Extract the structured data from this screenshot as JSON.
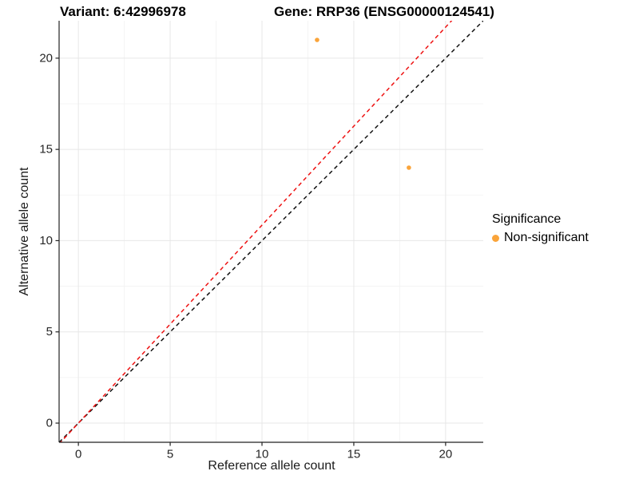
{
  "titles": {
    "variant": "Variant: 6:42996978",
    "gene": "Gene: RRP36 (ENSG00000124541)"
  },
  "legend": {
    "title": "Significance",
    "items": [
      {
        "label": "Non-significant",
        "color": "#FAA43A"
      }
    ]
  },
  "colors": {
    "background": "#FFFFFF",
    "point": "#FAA43A",
    "identity_line": "#111111",
    "ratio_line": "#EE1111",
    "grid_major": "#E7E7E7",
    "grid_minor": "#F2F2F2",
    "axis_line": "#222222",
    "tick_mark": "#222222",
    "tick_text": "#262626"
  },
  "chart_data": {
    "type": "scatter",
    "title": "Variant: 6:42996978 | Gene: RRP36 (ENSG00000124541)",
    "xlabel": "Reference allele count",
    "ylabel": "Alternative allele count",
    "points": [
      {
        "x": 13,
        "y": 21,
        "series": "Non-significant"
      },
      {
        "x": 18,
        "y": 14,
        "series": "Non-significant"
      }
    ],
    "point_color": "#FAA43A",
    "point_radius_px": 2.8,
    "xlim": [
      -1.05,
      22.05
    ],
    "ylim": [
      -1.05,
      22.05
    ],
    "xticks": [
      0,
      5,
      10,
      15,
      20
    ],
    "yticks": [
      0,
      5,
      10,
      15,
      20
    ],
    "xticks_minor": [
      2.5,
      7.5,
      12.5,
      17.5
    ],
    "yticks_minor": [
      2.5,
      7.5,
      12.5,
      17.5
    ],
    "grid": true,
    "legend_position": "right",
    "lines": [
      {
        "name": "identity",
        "slope": 1.0,
        "intercept": 0,
        "style": "dashed",
        "color": "#111111"
      },
      {
        "name": "allelic-ratio",
        "slope": 1.085,
        "intercept": 0,
        "style": "dashed",
        "color": "#EE1111"
      }
    ]
  }
}
